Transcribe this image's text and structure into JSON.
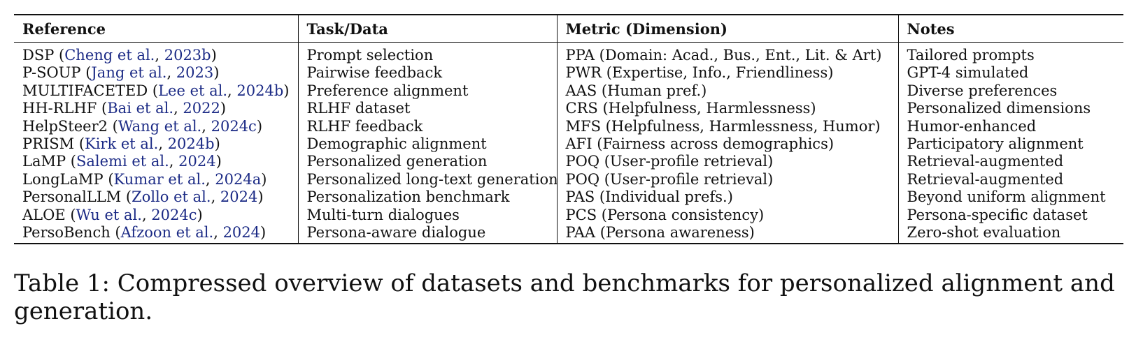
{
  "table": {
    "headers": [
      "Reference",
      "Task/Data",
      "Metric (Dimension)",
      "Notes"
    ],
    "rows": [
      {
        "name": "DSP",
        "authors": "Cheng et al.",
        "year": "2023b",
        "task": "Prompt selection",
        "metric": "PPA (Domain: Acad., Bus., Ent., Lit. & Art)",
        "notes": "Tailored prompts"
      },
      {
        "name": "P-SOUP",
        "authors": "Jang et al.",
        "year": "2023",
        "task": "Pairwise feedback",
        "metric": "PWR (Expertise, Info., Friendliness)",
        "notes": "GPT-4 simulated"
      },
      {
        "name": "MULTIFACETED",
        "authors": "Lee et al.",
        "year": "2024b",
        "task": "Preference alignment",
        "metric": "AAS (Human pref.)",
        "notes": "Diverse preferences"
      },
      {
        "name": "HH-RLHF",
        "authors": "Bai et al.",
        "year": "2022",
        "task": "RLHF dataset",
        "metric": "CRS (Helpfulness, Harmlessness)",
        "notes": "Personalized dimensions"
      },
      {
        "name": "HelpSteer2",
        "authors": "Wang et al.",
        "year": "2024c",
        "task": "RLHF feedback",
        "metric": "MFS (Helpfulness, Harmlessness, Humor)",
        "notes": "Humor-enhanced"
      },
      {
        "name": "PRISM",
        "authors": "Kirk et al.",
        "year": "2024b",
        "task": "Demographic alignment",
        "metric": "AFI (Fairness across demographics)",
        "notes": "Participatory alignment"
      },
      {
        "name": "LaMP",
        "authors": "Salemi et al.",
        "year": "2024",
        "task": "Personalized generation",
        "metric": "POQ (User-profile retrieval)",
        "notes": "Retrieval-augmented"
      },
      {
        "name": "LongLaMP",
        "authors": "Kumar et al.",
        "year": "2024a",
        "task": "Personalized long-text generation",
        "metric": "POQ (User-profile retrieval)",
        "notes": "Retrieval-augmented"
      },
      {
        "name": "PersonalLLM",
        "authors": "Zollo et al.",
        "year": "2024",
        "task": "Personalization benchmark",
        "metric": "PAS (Individual prefs.)",
        "notes": "Beyond uniform alignment"
      },
      {
        "name": "ALOE",
        "authors": "Wu et al.",
        "year": "2024c",
        "task": "Multi-turn dialogues",
        "metric": "PCS (Persona consistency)",
        "notes": "Persona-specific dataset"
      },
      {
        "name": "PersoBench",
        "authors": "Afzoon et al.",
        "year": "2024",
        "task": "Persona-aware dialogue",
        "metric": "PAA (Persona awareness)",
        "notes": "Zero-shot evaluation"
      }
    ]
  },
  "caption": "Table 1: Compressed overview of datasets and benchmarks for personalized alignment and generation.",
  "colors": {
    "citation": "#1b2a85",
    "text": "#111111"
  }
}
